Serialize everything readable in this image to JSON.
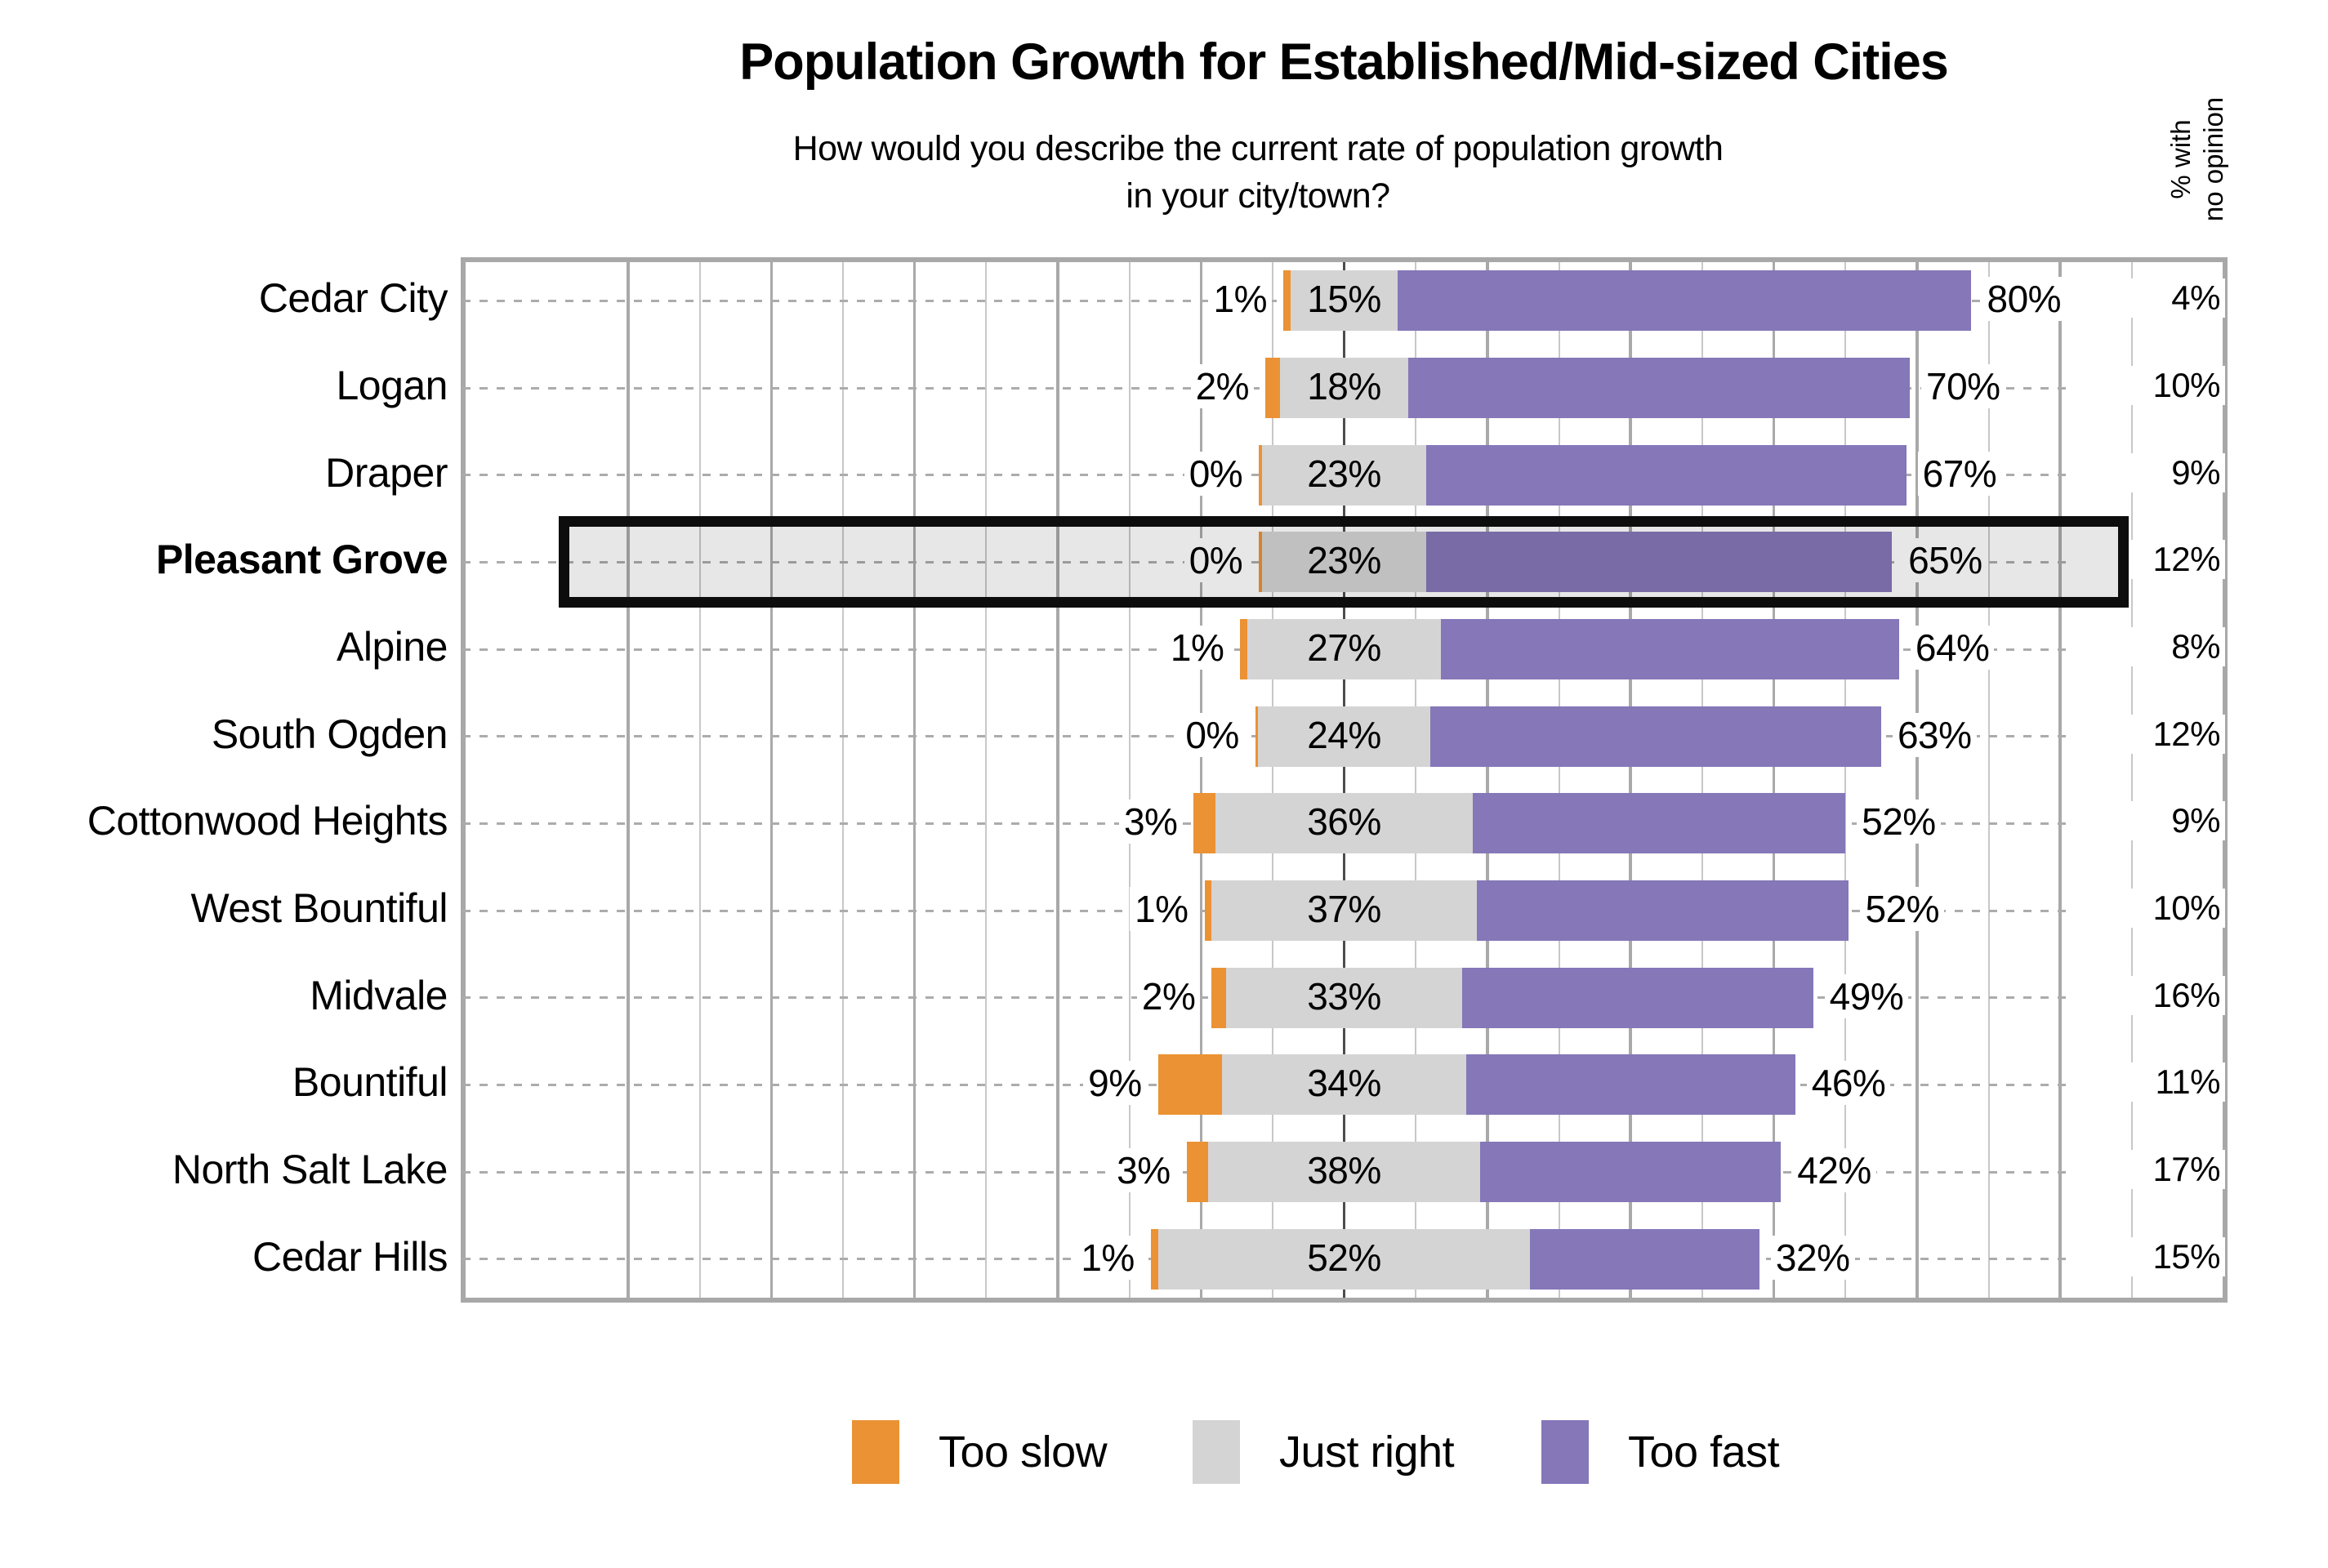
{
  "chart_data": {
    "type": "bar",
    "orientation": "horizontal-diverging-centered",
    "title": "Population Growth for Established/Mid-sized Cities",
    "subtitle_line1": "How would you describe the current rate of population growth",
    "subtitle_line2": "in your city/town?",
    "right_column_header_line1": "% with",
    "right_column_header_line2": "no opinion",
    "value_suffix": "%",
    "categories": [
      "Cedar City",
      "Logan",
      "Draper",
      "Pleasant Grove",
      "Alpine",
      "South Ogden",
      "Cottonwood Heights",
      "West Bountiful",
      "Midvale",
      "Bountiful",
      "North Salt Lake",
      "Cedar Hills"
    ],
    "series": [
      {
        "name": "Too slow",
        "color": "#EB9234",
        "values": [
          1,
          2,
          0,
          0,
          1,
          0,
          3,
          1,
          2,
          9,
          3,
          1
        ]
      },
      {
        "name": "Just right",
        "color": "#D4D4D4",
        "values": [
          15,
          18,
          23,
          23,
          27,
          24,
          36,
          37,
          33,
          34,
          38,
          52
        ]
      },
      {
        "name": "Too fast",
        "color": "#8577B8",
        "values": [
          80,
          70,
          67,
          65,
          64,
          63,
          52,
          52,
          49,
          46,
          42,
          32
        ]
      }
    ],
    "no_opinion": {
      "header": "% with no opinion",
      "values": [
        4,
        10,
        9,
        12,
        8,
        12,
        9,
        10,
        16,
        11,
        17,
        15
      ]
    },
    "highlighted_category": "Pleasant Grove",
    "xlim_note": "bars centered on midpoint of Just right segment",
    "gridline_interval_pct": 10,
    "legend_position": "bottom"
  },
  "legend": [
    {
      "label": "Too slow",
      "color": "#EB9234"
    },
    {
      "label": "Just right",
      "color": "#D4D4D4"
    },
    {
      "label": "Too fast",
      "color": "#8577B8"
    }
  ],
  "colors": {
    "too_slow": "#EB9234",
    "just_right": "#D4D4D4",
    "too_fast": "#8577B8",
    "plot_border": "#A8A8A8",
    "grid_major": "#A9A9A9",
    "grid_minor": "#C8C8C8",
    "grid_center": "#4D4D4D",
    "leader_dash": "#ACACAC",
    "highlight_border": "#0D0D0D",
    "highlight_fill": "rgba(0,0,0,0.094)",
    "text": "#000000"
  }
}
